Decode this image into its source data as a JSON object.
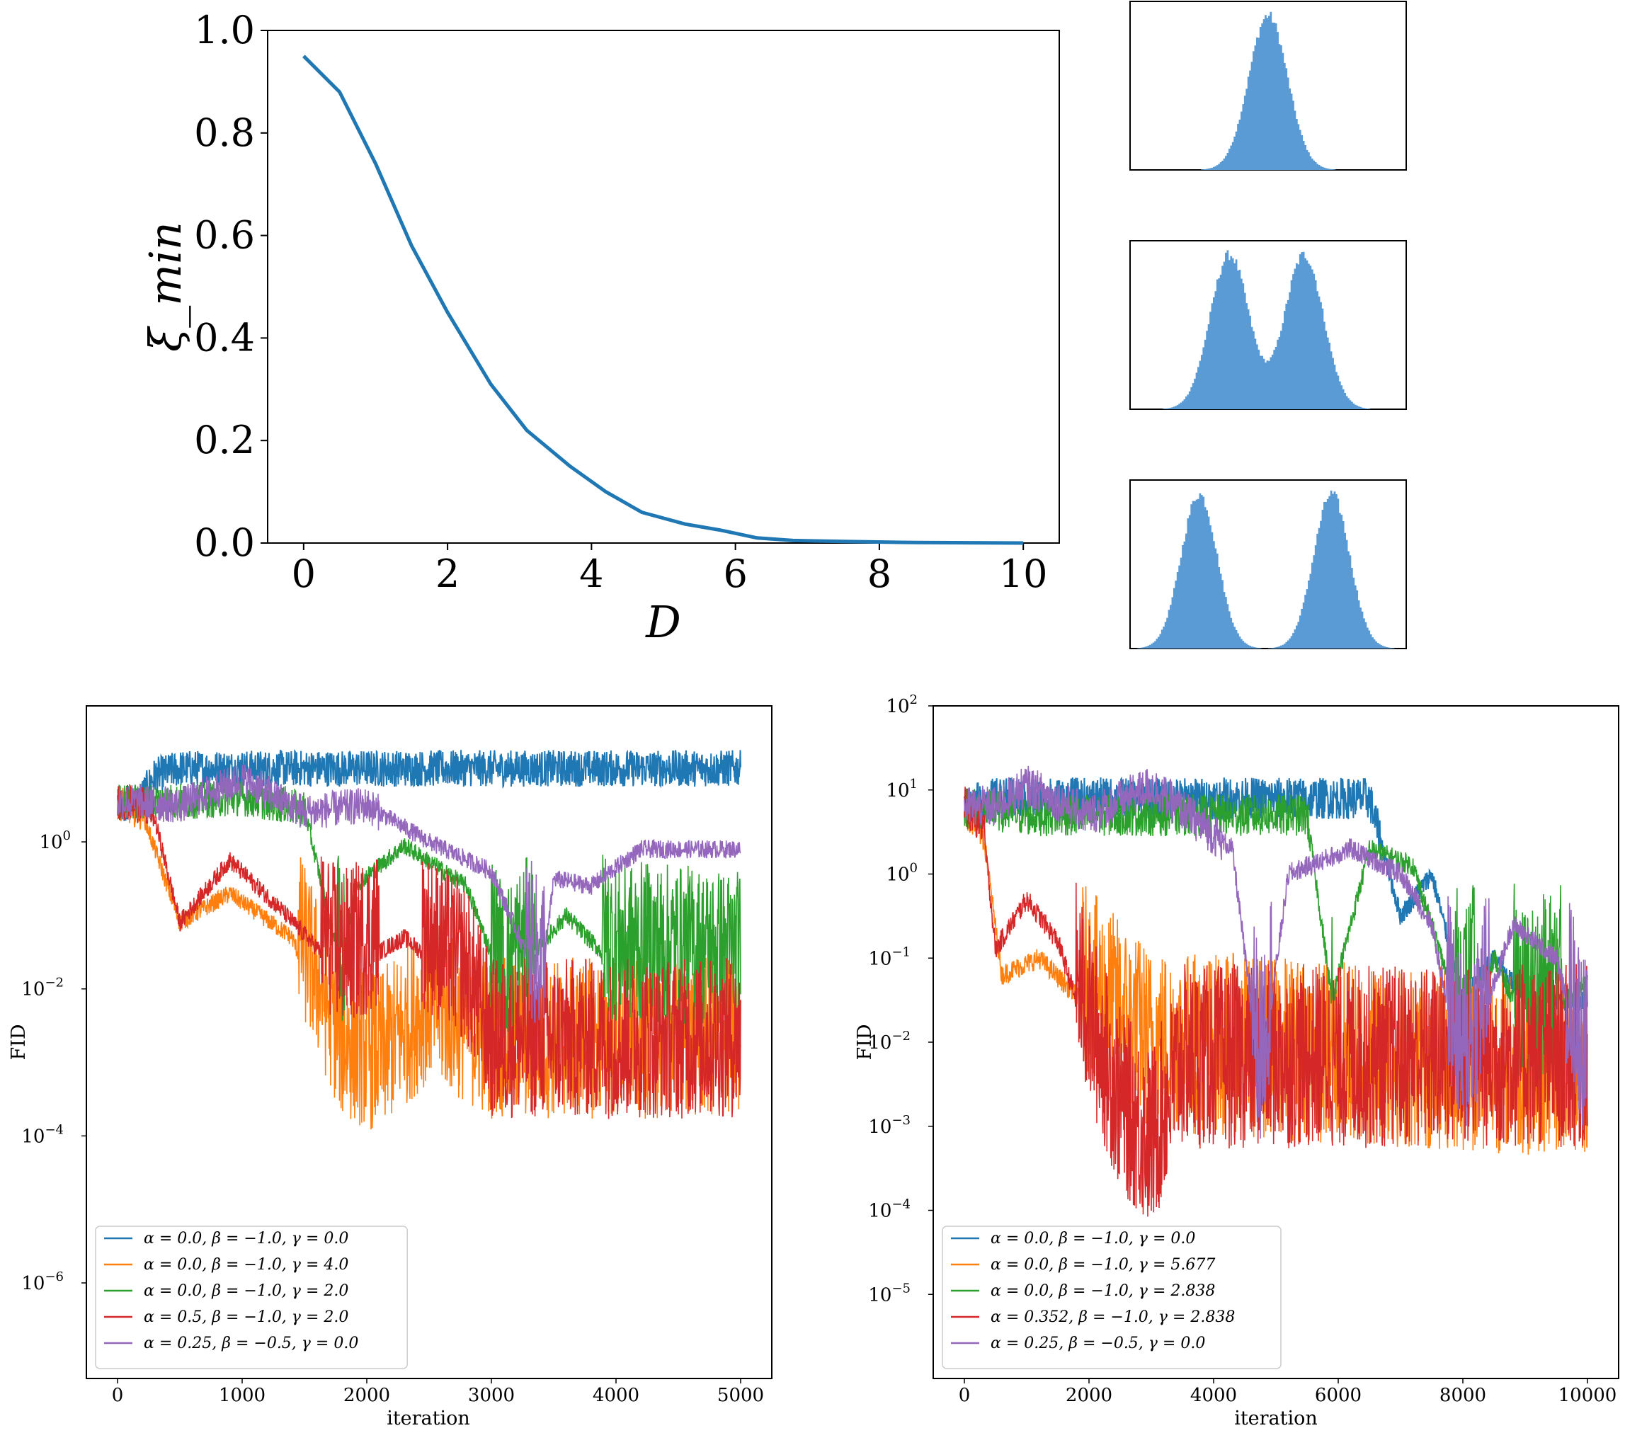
{
  "chart_data": [
    {
      "id": "xi_min_vs_D",
      "type": "line",
      "xlabel": "D",
      "ylabel": "ξ_min",
      "xlim": [
        -0.5,
        10.5
      ],
      "ylim": [
        0.0,
        1.0
      ],
      "xticks": [
        0,
        2,
        4,
        6,
        8,
        10
      ],
      "xtick_labels": [
        "0",
        "2",
        "4",
        "6",
        "8",
        "10"
      ],
      "yticks": [
        0.0,
        0.2,
        0.4,
        0.6,
        0.8,
        1.0
      ],
      "ytick_labels": [
        "0.0",
        "0.2",
        "0.4",
        "0.6",
        "0.8",
        "1.0"
      ],
      "color": "#1f77b4",
      "x": [
        0.0,
        0.5,
        1.0,
        1.5,
        2.0,
        2.6,
        3.1,
        3.7,
        4.2,
        4.7,
        5.3,
        5.8,
        6.3,
        6.8,
        7.5,
        8.5,
        10.0
      ],
      "y": [
        0.95,
        0.88,
        0.74,
        0.58,
        0.45,
        0.31,
        0.22,
        0.15,
        0.1,
        0.06,
        0.037,
        0.025,
        0.01,
        0.005,
        0.003,
        0.001,
        0.0
      ]
    },
    {
      "id": "hist_unimodal",
      "type": "bar",
      "description_mode": "histogram",
      "color": "#5b9bd5",
      "peaks": [
        {
          "center": 0.5,
          "width": 0.07
        }
      ]
    },
    {
      "id": "hist_bimodal_close",
      "type": "bar",
      "description_mode": "histogram",
      "color": "#5b9bd5",
      "peaks": [
        {
          "center": 0.36,
          "width": 0.07
        },
        {
          "center": 0.63,
          "width": 0.07
        }
      ]
    },
    {
      "id": "hist_bimodal_far",
      "type": "bar",
      "description_mode": "histogram",
      "color": "#5b9bd5",
      "peaks": [
        {
          "center": 0.25,
          "width": 0.065
        },
        {
          "center": 0.73,
          "width": 0.065
        }
      ]
    },
    {
      "id": "fid_left",
      "type": "line",
      "xlabel": "iteration",
      "ylabel": "FID",
      "yscale": "log",
      "xlim": [
        -250,
        5250
      ],
      "ylim_log10": [
        -7.3,
        1.85
      ],
      "xticks": [
        0,
        1000,
        2000,
        3000,
        4000,
        5000
      ],
      "xtick_labels": [
        "0",
        "1000",
        "2000",
        "3000",
        "4000",
        "5000"
      ],
      "yticks_log10": [
        -6,
        -4,
        -2,
        0
      ],
      "ytick_labels": [
        "10",
        "10",
        "10",
        "10"
      ],
      "ytick_exponents": [
        "−6",
        "−4",
        "−2",
        "0"
      ],
      "legend_position": "lower-left",
      "series": [
        {
          "name": "α = 0.0, β = −1.0, γ = 0.0",
          "color": "#1f77b4",
          "x": [
            0,
            150,
            300,
            500,
            1000,
            1500,
            2000,
            3000,
            4000,
            5000
          ],
          "y_log10": [
            0.55,
            0.5,
            0.9,
            1.0,
            1.0,
            1.0,
            1.0,
            1.0,
            1.0,
            1.0
          ]
        },
        {
          "name": "α = 0.0, β = −1.0, γ = 4.0",
          "color": "#ff7f0e",
          "x": [
            0,
            200,
            400,
            500,
            900,
            1400,
            1800,
            2100,
            2500,
            3000,
            4000,
            5000
          ],
          "y_log10": [
            0.55,
            0.4,
            -0.6,
            -1.1,
            -0.7,
            -1.3,
            -3.0,
            -3.2,
            -2.5,
            -3.0,
            -3.0,
            -3.0
          ]
        },
        {
          "name": "α = 0.0, β = −1.0, γ = 2.0",
          "color": "#2ca02c",
          "x": [
            0,
            500,
            1000,
            1500,
            1800,
            1900,
            2300,
            2800,
            3100,
            3600,
            4000,
            4300,
            5000
          ],
          "y_log10": [
            0.55,
            0.55,
            0.6,
            0.45,
            -1.8,
            -0.6,
            -0.05,
            -0.6,
            -2.0,
            -1.0,
            -1.7,
            -1.7,
            -1.8
          ]
        },
        {
          "name": "α = 0.5, β = −1.0, γ = 2.0",
          "color": "#d62728",
          "x": [
            0,
            200,
            300,
            500,
            900,
            1300,
            1800,
            2300,
            2800,
            3000,
            4000,
            5000
          ],
          "y_log10": [
            0.55,
            0.5,
            0.3,
            -1.1,
            -0.25,
            -0.9,
            -1.8,
            -1.3,
            -2.0,
            -3.0,
            -3.0,
            -3.0
          ]
        },
        {
          "name": "α = 0.25, β = −0.5, γ = 0.0",
          "color": "#9467bd",
          "x": [
            0,
            500,
            1000,
            1500,
            2000,
            2500,
            3000,
            3400,
            3500,
            3800,
            4200,
            5000
          ],
          "y_log10": [
            0.55,
            0.5,
            0.85,
            0.4,
            0.5,
            0.0,
            -0.4,
            -2.0,
            -0.5,
            -0.6,
            -0.1,
            -0.1
          ]
        }
      ]
    },
    {
      "id": "fid_right",
      "type": "line",
      "xlabel": "iteration",
      "ylabel": "FID",
      "yscale": "log",
      "xlim": [
        -500,
        10500
      ],
      "ylim_log10": [
        -6.0,
        2.0
      ],
      "xticks": [
        0,
        2000,
        4000,
        6000,
        8000,
        10000
      ],
      "xtick_labels": [
        "0",
        "2000",
        "4000",
        "6000",
        "8000",
        "10000"
      ],
      "yticks_log10": [
        -5,
        -4,
        -3,
        -2,
        -1,
        0,
        1,
        2
      ],
      "ytick_labels": [
        "10",
        "10",
        "10",
        "10",
        "10",
        "10",
        "10",
        "10"
      ],
      "ytick_exponents": [
        "−5",
        "−4",
        "−3",
        "−2",
        "−1",
        "0",
        "1",
        "2"
      ],
      "legend_position": "lower-left",
      "series": [
        {
          "name": "α = 0.0, β = −1.0, γ = 0.0",
          "color": "#1f77b4",
          "x": [
            0,
            500,
            2000,
            4000,
            6000,
            6500,
            7000,
            7500,
            8000,
            8500,
            9000,
            10000
          ],
          "y_log10": [
            0.8,
            0.9,
            0.9,
            0.9,
            0.9,
            0.9,
            -0.5,
            0.0,
            -1.5,
            -1.0,
            -1.5,
            -1.5
          ]
        },
        {
          "name": "α = 0.0, β = −1.0, γ = 5.677",
          "color": "#ff7f0e",
          "x": [
            0,
            300,
            600,
            1200,
            2000,
            3000,
            5000,
            7000,
            10000
          ],
          "y_log10": [
            0.8,
            0.5,
            -1.2,
            -1.0,
            -1.6,
            -2.3,
            -2.4,
            -2.5,
            -2.6
          ]
        },
        {
          "name": "α = 0.0, β = −1.0, γ = 2.838",
          "color": "#2ca02c",
          "x": [
            0,
            1000,
            3000,
            5500,
            5900,
            6500,
            7200,
            8000,
            8500,
            9000,
            10000
          ],
          "y_log10": [
            0.8,
            0.7,
            0.7,
            0.7,
            -1.5,
            0.3,
            0.1,
            -1.8,
            -1.0,
            -1.8,
            -1.3
          ]
        },
        {
          "name": "α = 0.352, β = −1.0, γ = 2.838",
          "color": "#d62728",
          "x": [
            0,
            300,
            500,
            1000,
            1500,
            2000,
            2500,
            3000,
            3500,
            5000,
            7000,
            10000
          ],
          "y_log10": [
            0.8,
            0.6,
            -0.9,
            -0.3,
            -0.8,
            -2.0,
            -3.0,
            -3.5,
            -2.5,
            -2.5,
            -2.5,
            -2.5
          ]
        },
        {
          "name": "α = 0.25, β = −0.5, γ = 0.0",
          "color": "#9467bd",
          "x": [
            0,
            500,
            1000,
            2000,
            3000,
            4300,
            4750,
            5200,
            6200,
            7000,
            7500,
            8000,
            8800,
            9500,
            10000
          ],
          "y_log10": [
            0.8,
            0.8,
            1.05,
            0.7,
            1.05,
            0.3,
            -2.5,
            0.0,
            0.3,
            0.0,
            -0.6,
            -2.5,
            -0.6,
            -1.0,
            -2.5
          ]
        }
      ]
    }
  ]
}
